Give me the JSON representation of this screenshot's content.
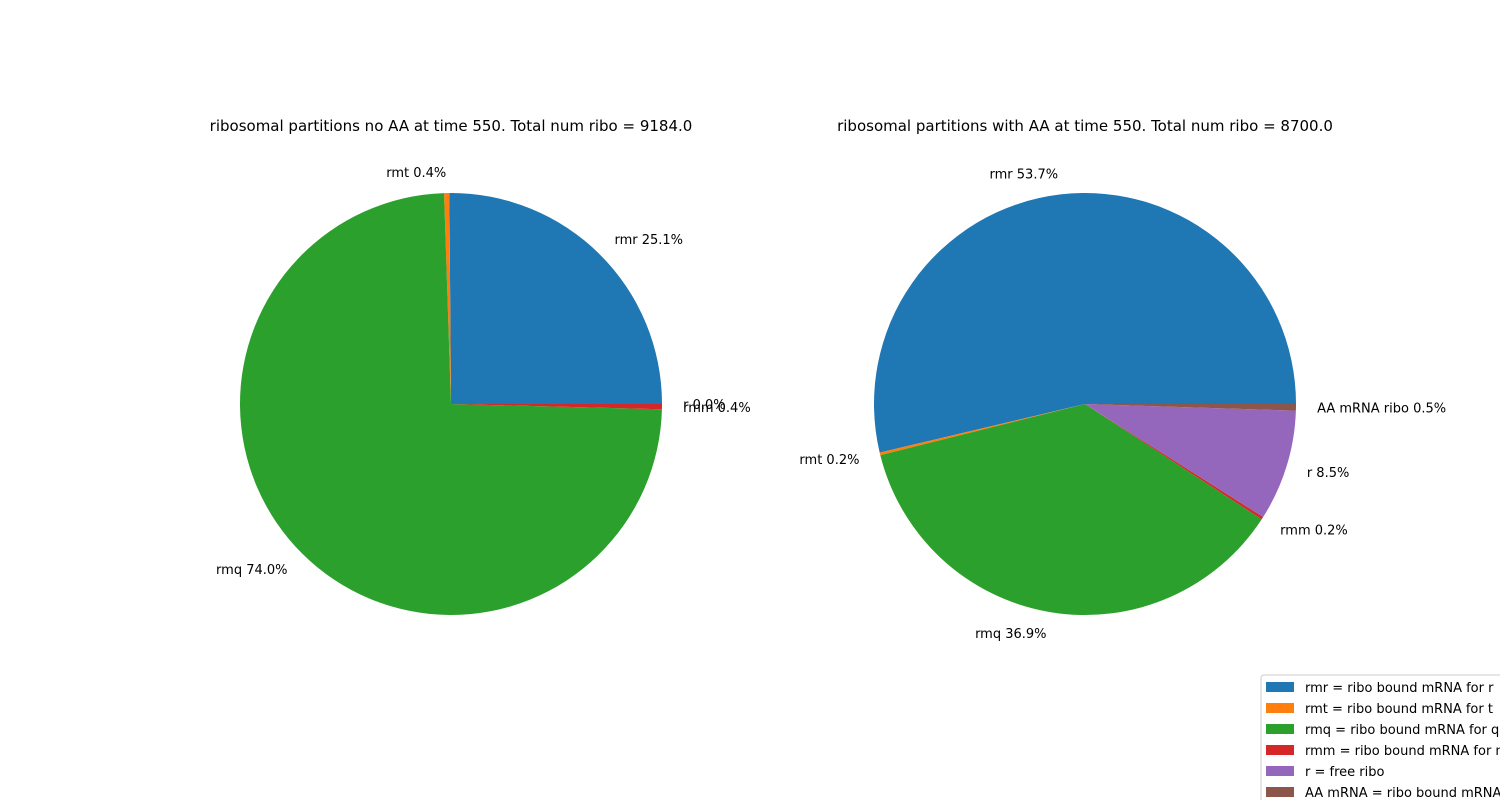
{
  "chart_data": [
    {
      "type": "pie",
      "title": "ribosomal partitions no AA at time 550. Total num ribo = 9184.0",
      "slices": [
        {
          "key": "rmr",
          "label": "rmr 25.1%",
          "percent": 25.1
        },
        {
          "key": "rmt",
          "label": "rmt 0.4%",
          "percent": 0.4
        },
        {
          "key": "rmq",
          "label": "rmq 74.0%",
          "percent": 74.0
        },
        {
          "key": "rmm",
          "label": "rmm 0.4%",
          "percent": 0.4
        },
        {
          "key": "r",
          "label": "r 0.0%",
          "percent": 0.0
        }
      ]
    },
    {
      "type": "pie",
      "title": "ribosomal partitions with AA at time 550. Total num ribo = 8700.0",
      "slices": [
        {
          "key": "rmr",
          "label": "rmr 53.7%",
          "percent": 53.7
        },
        {
          "key": "rmt",
          "label": "rmt 0.2%",
          "percent": 0.2
        },
        {
          "key": "rmq",
          "label": "rmq 36.9%",
          "percent": 36.9
        },
        {
          "key": "rmm",
          "label": "rmm 0.2%",
          "percent": 0.2
        },
        {
          "key": "r",
          "label": "r 8.5%",
          "percent": 8.5
        },
        {
          "key": "AA mRNA",
          "label": "AA mRNA ribo 0.5%",
          "percent": 0.5
        }
      ]
    }
  ],
  "legend": {
    "placement": "bottom-right",
    "entries": [
      {
        "key": "rmr",
        "text": "rmr = ribo bound mRNA for r",
        "color": "#1f77b4"
      },
      {
        "key": "rmt",
        "text": "rmt = ribo bound mRNA for t",
        "color": "#ff7f0e"
      },
      {
        "key": "rmq",
        "text": "rmq = ribo bound mRNA for q",
        "color": "#2ca02c"
      },
      {
        "key": "rmm",
        "text": "rmm = ribo bound mRNA for m",
        "color": "#d62728"
      },
      {
        "key": "r",
        "text": "r = free ribo",
        "color": "#9467bd"
      },
      {
        "key": "AA mRNA",
        "text": "AA mRNA = ribo bound mRNA",
        "color": "#8c564b"
      }
    ]
  }
}
